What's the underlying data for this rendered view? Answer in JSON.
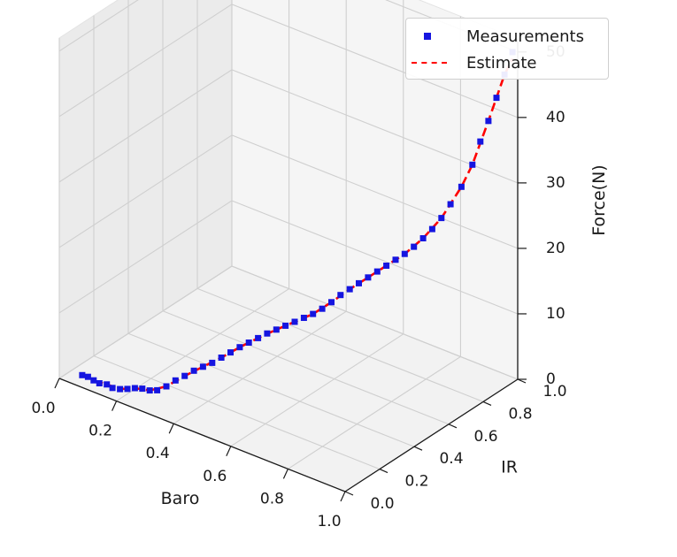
{
  "chart_data": {
    "type": "scatter",
    "view": "3d",
    "xlabel": "Baro",
    "ylabel": "IR",
    "zlabel": "Force(N)",
    "xlim": [
      0,
      1
    ],
    "ylim": [
      0,
      1
    ],
    "zlim": [
      0,
      52
    ],
    "xticks": [
      "0.0",
      "0.2",
      "0.4",
      "0.6",
      "0.8",
      "1.0"
    ],
    "yticks": [
      "0.0",
      "0.2",
      "0.4",
      "0.6",
      "0.8",
      "1.0"
    ],
    "zticks": [
      "0",
      "10",
      "20",
      "30",
      "40",
      "50"
    ],
    "grid": true,
    "legend_position": "top-right",
    "colors": {
      "measurements": "#1515e0",
      "estimate": "#ff0000"
    },
    "series": [
      {
        "name": "Measurements",
        "style": "square-markers",
        "points": [
          [
            0.05,
            0.05,
            0.5
          ],
          [
            0.07,
            0.05,
            0.6
          ],
          [
            0.09,
            0.05,
            0.4
          ],
          [
            0.11,
            0.05,
            0.3
          ],
          [
            0.13,
            0.06,
            0.3
          ],
          [
            0.15,
            0.06,
            0.1
          ],
          [
            0.17,
            0.07,
            0.1
          ],
          [
            0.19,
            0.08,
            0.3
          ],
          [
            0.21,
            0.09,
            0.6
          ],
          [
            0.23,
            0.1,
            0.7
          ],
          [
            0.25,
            0.11,
            0.6
          ],
          [
            0.27,
            0.12,
            0.8
          ],
          [
            0.29,
            0.14,
            1.4
          ],
          [
            0.31,
            0.16,
            2.3
          ],
          [
            0.33,
            0.18,
            3.0
          ],
          [
            0.35,
            0.2,
            3.8
          ],
          [
            0.37,
            0.22,
            4.4
          ],
          [
            0.39,
            0.24,
            5.0
          ],
          [
            0.41,
            0.26,
            5.8
          ],
          [
            0.43,
            0.28,
            6.6
          ],
          [
            0.45,
            0.3,
            7.4
          ],
          [
            0.47,
            0.32,
            8.1
          ],
          [
            0.49,
            0.34,
            8.8
          ],
          [
            0.51,
            0.36,
            9.5
          ],
          [
            0.53,
            0.38,
            10.1
          ],
          [
            0.55,
            0.4,
            10.7
          ],
          [
            0.57,
            0.42,
            11.3
          ],
          [
            0.59,
            0.44,
            11.9
          ],
          [
            0.61,
            0.46,
            12.5
          ],
          [
            0.63,
            0.48,
            13.3
          ],
          [
            0.65,
            0.5,
            14.3
          ],
          [
            0.67,
            0.52,
            15.4
          ],
          [
            0.69,
            0.54,
            16.3
          ],
          [
            0.71,
            0.56,
            17.2
          ],
          [
            0.73,
            0.58,
            18.1
          ],
          [
            0.75,
            0.6,
            19.0
          ],
          [
            0.77,
            0.62,
            19.9
          ],
          [
            0.79,
            0.64,
            20.8
          ],
          [
            0.81,
            0.66,
            21.7
          ],
          [
            0.83,
            0.68,
            22.8
          ],
          [
            0.85,
            0.7,
            24.1
          ],
          [
            0.87,
            0.72,
            25.5
          ],
          [
            0.89,
            0.74,
            27.2
          ],
          [
            0.91,
            0.76,
            29.3
          ],
          [
            0.93,
            0.79,
            31.8
          ],
          [
            0.95,
            0.82,
            35.0
          ],
          [
            0.96,
            0.85,
            38.2
          ],
          [
            0.97,
            0.88,
            41.0
          ],
          [
            0.98,
            0.91,
            44.2
          ],
          [
            0.99,
            0.94,
            47.4
          ],
          [
            1.0,
            0.97,
            50.5
          ]
        ]
      },
      {
        "name": "Estimate",
        "style": "dashed-line",
        "points": [
          [
            0.05,
            0.05,
            0.5
          ],
          [
            0.09,
            0.05,
            0.4
          ],
          [
            0.13,
            0.06,
            0.3
          ],
          [
            0.17,
            0.07,
            0.1
          ],
          [
            0.21,
            0.09,
            0.6
          ],
          [
            0.25,
            0.11,
            0.6
          ],
          [
            0.29,
            0.14,
            1.4
          ],
          [
            0.33,
            0.18,
            3.0
          ],
          [
            0.37,
            0.22,
            4.4
          ],
          [
            0.41,
            0.26,
            5.8
          ],
          [
            0.45,
            0.3,
            7.4
          ],
          [
            0.49,
            0.34,
            8.8
          ],
          [
            0.53,
            0.38,
            10.1
          ],
          [
            0.57,
            0.42,
            11.3
          ],
          [
            0.61,
            0.46,
            12.5
          ],
          [
            0.65,
            0.5,
            14.3
          ],
          [
            0.69,
            0.54,
            16.3
          ],
          [
            0.73,
            0.58,
            18.1
          ],
          [
            0.77,
            0.62,
            19.9
          ],
          [
            0.81,
            0.66,
            21.7
          ],
          [
            0.85,
            0.7,
            24.1
          ],
          [
            0.89,
            0.74,
            27.2
          ],
          [
            0.93,
            0.79,
            31.8
          ],
          [
            0.95,
            0.82,
            35.0
          ],
          [
            0.97,
            0.88,
            41.0
          ],
          [
            0.99,
            0.94,
            47.4
          ],
          [
            1.0,
            0.97,
            49.5
          ]
        ]
      }
    ]
  }
}
